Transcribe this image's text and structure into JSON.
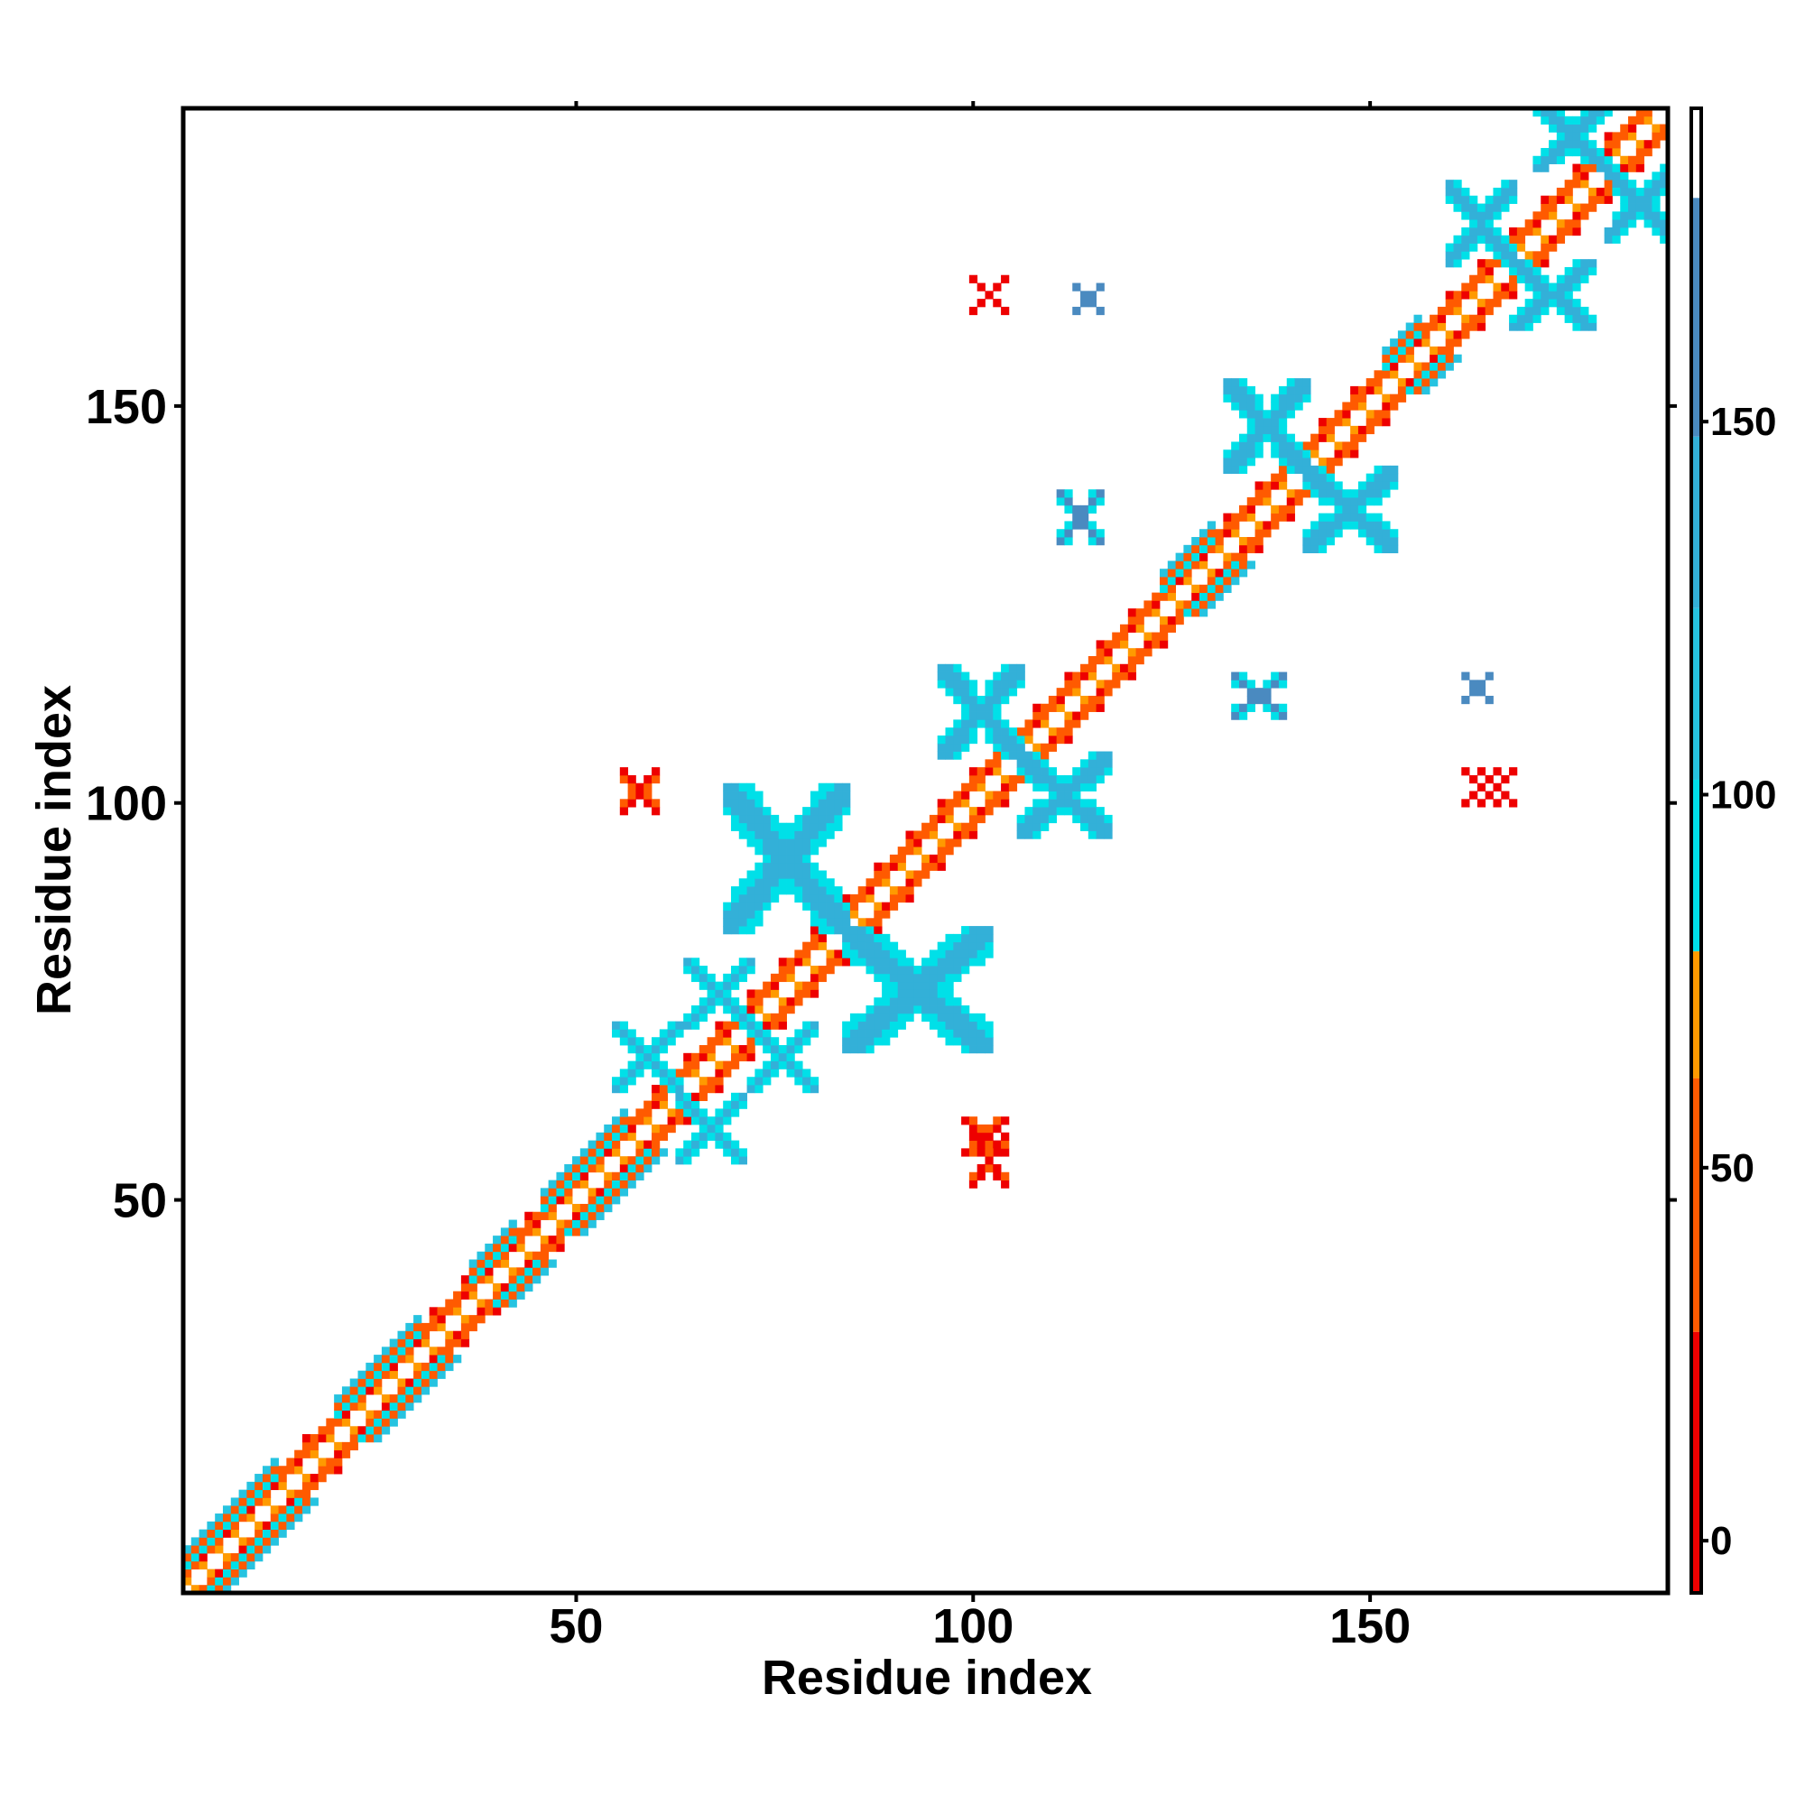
{
  "chart_data": {
    "type": "heatmap",
    "title": "",
    "xlabel": "Residue index",
    "ylabel": "Residue index",
    "xlim": [
      1,
      187
    ],
    "ylim": [
      1,
      187
    ],
    "x_ticks": [
      50,
      100,
      150
    ],
    "y_ticks": [
      50,
      100,
      150
    ],
    "colorbar": {
      "ticks": [
        0,
        50,
        100,
        150
      ],
      "range": [
        -7,
        192
      ],
      "bands": [
        {
          "from": -7,
          "to": 28,
          "color": "#ee0000"
        },
        {
          "from": 28,
          "to": 62,
          "color": "#ff5a00"
        },
        {
          "from": 62,
          "to": 79,
          "color": "#ff9a00"
        },
        {
          "from": 79,
          "to": 102,
          "color": "#00e0e8"
        },
        {
          "from": 102,
          "to": 125,
          "color": "#26c3e0"
        },
        {
          "from": 125,
          "to": 148,
          "color": "#33b0d8"
        },
        {
          "from": 148,
          "to": 180,
          "color": "#4a8ac0"
        },
        {
          "from": 180,
          "to": 192,
          "color": "#ffffff"
        }
      ]
    },
    "diagonal": {
      "from": 1,
      "to": 187
    },
    "helix_segments": [
      [
        1,
        12
      ],
      [
        20,
        30
      ],
      [
        37,
        42
      ],
      [
        46,
        56
      ],
      [
        124,
        130
      ],
      [
        152,
        156
      ]
    ],
    "blocks": [
      {
        "x": [
          55,
          63
        ],
        "y": [
          64,
          72
        ],
        "value": 140
      },
      {
        "x": [
          63,
          71
        ],
        "y": [
          55,
          63
        ],
        "value": 140
      },
      {
        "x": [
          64,
          72
        ],
        "y": [
          72,
          80
        ],
        "value": 140
      },
      {
        "x": [
          72,
          80
        ],
        "y": [
          64,
          72
        ],
        "value": 140
      },
      {
        "x": [
          69,
          84
        ],
        "y": [
          84,
          102
        ],
        "value": 135
      },
      {
        "x": [
          84,
          102
        ],
        "y": [
          69,
          84
        ],
        "value": 135
      },
      {
        "x": [
          96,
          106
        ],
        "y": [
          106,
          117
        ],
        "value": 135
      },
      {
        "x": [
          106,
          117
        ],
        "y": [
          96,
          106
        ],
        "value": 135
      },
      {
        "x": [
          132,
          142
        ],
        "y": [
          142,
          153
        ],
        "value": 135
      },
      {
        "x": [
          142,
          153
        ],
        "y": [
          132,
          142
        ],
        "value": 135
      },
      {
        "x": [
          160,
          168
        ],
        "y": [
          168,
          178
        ],
        "value": 135
      },
      {
        "x": [
          168,
          178
        ],
        "y": [
          160,
          168
        ],
        "value": 135
      },
      {
        "x": [
          171,
          180
        ],
        "y": [
          180,
          188
        ],
        "value": 135
      },
      {
        "x": [
          180,
          188
        ],
        "y": [
          171,
          180
        ],
        "value": 135
      },
      {
        "x": [
          111,
          116
        ],
        "y": [
          133,
          139
        ],
        "value": 160
      },
      {
        "x": [
          133,
          139
        ],
        "y": [
          111,
          116
        ],
        "value": 160
      },
      {
        "x": [
          113,
          116
        ],
        "y": [
          162,
          165
        ],
        "value": 160
      },
      {
        "x": [
          162,
          165
        ],
        "y": [
          113,
          116
        ],
        "value": 160
      },
      {
        "x": [
          100,
          104
        ],
        "y": [
          162,
          166
        ],
        "value": 10
      },
      {
        "x": [
          162,
          166
        ],
        "y": [
          100,
          104
        ],
        "value": 10
      },
      {
        "x": [
          56,
          60
        ],
        "y": [
          99,
          104
        ],
        "value": 10
      },
      {
        "x": [
          99,
          104
        ],
        "y": [
          56,
          60
        ],
        "value": 10
      },
      {
        "x": [
          100,
          104
        ],
        "y": [
          52,
          58
        ],
        "value": 10
      },
      {
        "x": [
          164,
          168
        ],
        "y": [
          100,
          104
        ],
        "value": 10
      }
    ]
  }
}
